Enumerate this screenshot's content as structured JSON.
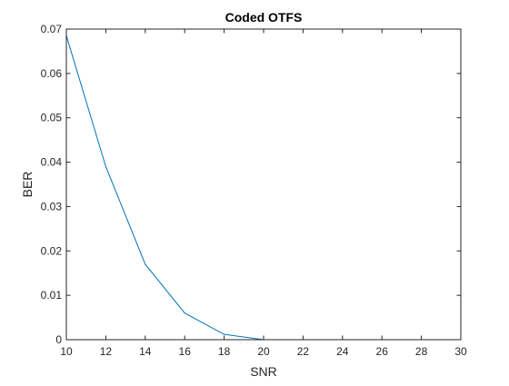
{
  "chart_data": {
    "type": "line",
    "title": "Coded OTFS",
    "xlabel": "SNR",
    "ylabel": "BER",
    "xlim": [
      10,
      30
    ],
    "ylim": [
      0,
      0.07
    ],
    "xticks": [
      10,
      12,
      14,
      16,
      18,
      20,
      22,
      24,
      26,
      28,
      30
    ],
    "yticks": [
      0,
      0.01,
      0.02,
      0.03,
      0.04,
      0.05,
      0.06,
      0.07
    ],
    "grid": false,
    "series": [
      {
        "color": "#0072BD",
        "x": [
          10,
          12,
          14,
          16,
          18,
          20,
          22,
          24,
          26,
          28,
          30
        ],
        "y": [
          0.0685,
          0.039,
          0.017,
          0.006,
          0.0012,
          0,
          0,
          0,
          0,
          0,
          0
        ]
      }
    ]
  }
}
